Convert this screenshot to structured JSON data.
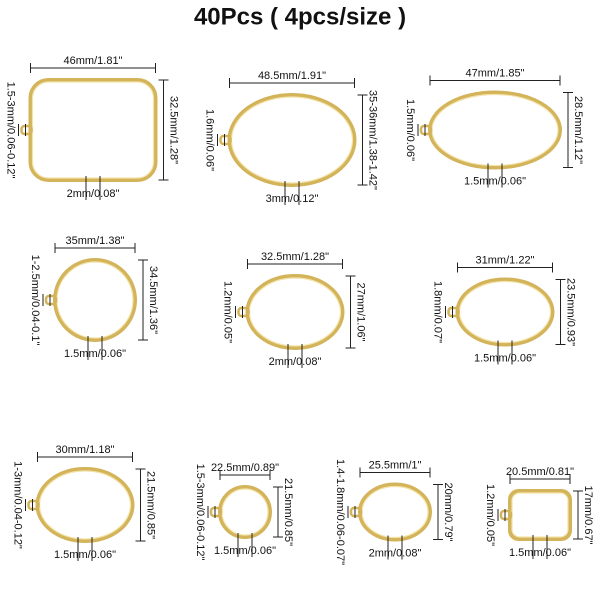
{
  "title": "40Pcs ( 4pcs/size )",
  "items": [
    {
      "width": "46mm/1.81\"",
      "height": "32.5mm/1.28\"",
      "thickness": "1.5-3mm/0.06-0.12\"",
      "hole": "2mm/0.08\""
    },
    {
      "width": "48.5mm/1.91\"",
      "height": "35-36mm/1.38-1.42\"",
      "thickness": "1.6mm/0.06\"",
      "hole": "3mm/0.12\""
    },
    {
      "width": "47mm/1.85\"",
      "height": "28.5mm/1.12\"",
      "thickness": "1.5mm/0.06\"",
      "hole": "1.5mm/0.06\""
    },
    {
      "width": "35mm/1.38\"",
      "height": "34.5mm/1.36\"",
      "thickness": "1-2.5mm/0.04-0.1\"",
      "hole": "1.5mm/0.06\""
    },
    {
      "width": "32.5mm/1.28\"",
      "height": "27mm/1.06\"",
      "thickness": "1.2mm/0.05\"",
      "hole": "2mm/0.08\""
    },
    {
      "width": "31mm/1.22\"",
      "height": "23.5mm/0.93\"",
      "thickness": "1.8mm/0.07\"",
      "hole": "1.5mm/0.06\""
    },
    {
      "width": "30mm/1.18\"",
      "height": "21.5mm/0.85\"",
      "thickness": "1-3mm/0.04-0.12\"",
      "hole": "1.5mm/0.06\""
    },
    {
      "width": "22.5mm/0.89\"",
      "height": "21.5mm/0.85\"",
      "thickness": "1.5-3mm/0.06-0.12\"",
      "hole": "1.5mm/0.06\""
    },
    {
      "width": "25.5mm/1\"",
      "height": "20mm/0.79\"",
      "thickness": "1.4-1.8mm/0.06-0.07\"",
      "hole": "2mm/0.08\""
    },
    {
      "width": "20.5mm/0.81\"",
      "height": "17mm/0.67\"",
      "thickness": "1.2mm/0.05\"",
      "hole": "1.5mm/0.06\""
    }
  ]
}
